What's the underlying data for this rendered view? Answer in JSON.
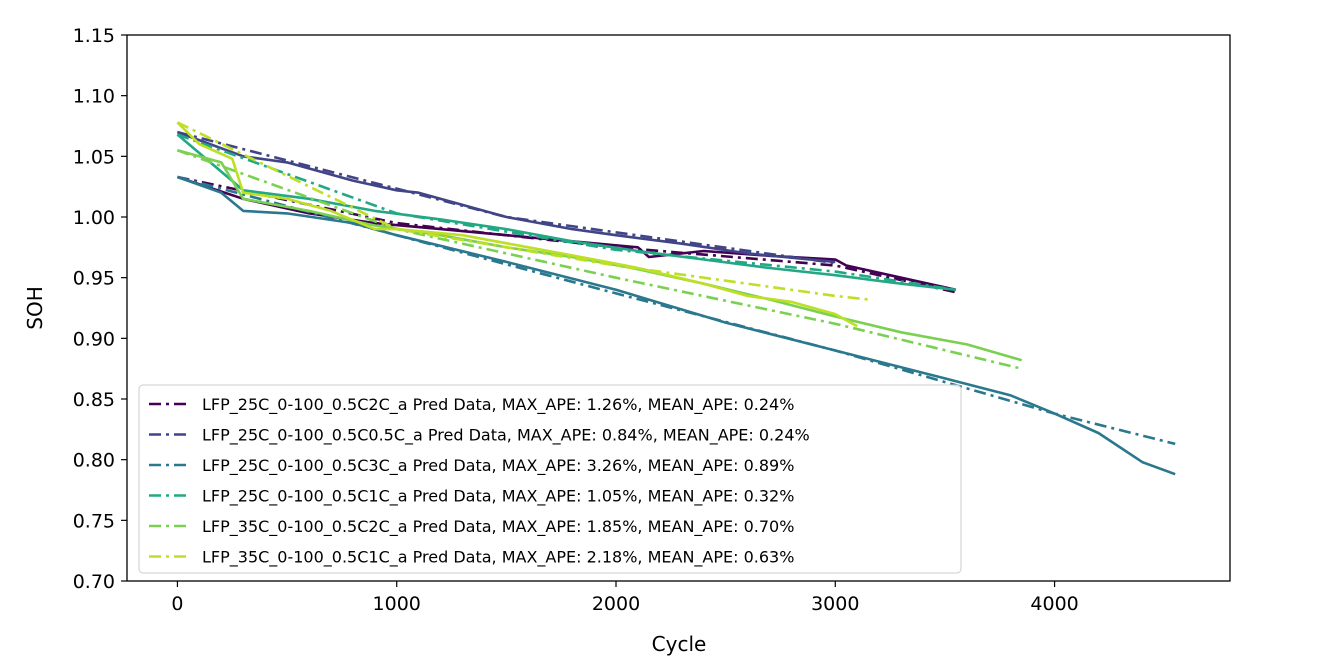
{
  "chart_data": {
    "type": "line",
    "title": "",
    "xlabel": "Cycle",
    "ylabel": "SOH",
    "xlim": [
      -230,
      4800
    ],
    "ylim": [
      0.7,
      1.15
    ],
    "xticks": [
      0,
      1000,
      2000,
      3000,
      4000
    ],
    "xtick_labels": [
      "0",
      "1000",
      "2000",
      "3000",
      "4000"
    ],
    "yticks": [
      0.7,
      0.75,
      0.8,
      0.85,
      0.9,
      0.95,
      1.0,
      1.05,
      1.1,
      1.15
    ],
    "ytick_labels": [
      "0.70",
      "0.75",
      "0.80",
      "0.85",
      "0.90",
      "0.95",
      "1.00",
      "1.05",
      "1.10",
      "1.15"
    ],
    "grid": false,
    "legend_position": "lower-left",
    "series": [
      {
        "name": "LFP_25C_0-100_0.5C2C_a Pred Data, MAX_APE: 1.26%, MEAN_APE: 0.24%",
        "color": "#440154",
        "actual": {
          "x": [
            0,
            300,
            600,
            900,
            1200,
            1500,
            1800,
            2100,
            2150,
            2400,
            2700,
            3000,
            3050,
            3300,
            3550
          ],
          "y": [
            1.033,
            1.015,
            1.003,
            0.995,
            0.99,
            0.985,
            0.98,
            0.975,
            0.967,
            0.972,
            0.968,
            0.965,
            0.96,
            0.95,
            0.94
          ]
        },
        "pred": {
          "x": [
            0,
            1000,
            2000,
            3000,
            3550
          ],
          "y": [
            1.033,
            0.995,
            0.975,
            0.96,
            0.938
          ]
        }
      },
      {
        "name": "LFP_25C_0-100_0.5C0.5C_a Pred Data, MAX_APE: 0.84%, MEAN_APE: 0.24%",
        "color": "#414487",
        "actual": {
          "x": [
            0,
            300,
            500,
            800,
            1000,
            1100,
            1500,
            1800,
            2000,
            2300,
            2600,
            3000
          ],
          "y": [
            1.07,
            1.05,
            1.045,
            1.03,
            1.022,
            1.02,
            1.0,
            0.99,
            0.985,
            0.978,
            0.97,
            0.963
          ]
        },
        "pred": {
          "x": [
            0,
            1500,
            3000
          ],
          "y": [
            1.07,
            1.0,
            0.962
          ]
        }
      },
      {
        "name": "LFP_25C_0-100_0.5C3C_a Pred Data, MAX_APE: 3.26%, MEAN_APE: 0.89%",
        "color": "#2a788e",
        "actual": {
          "x": [
            0,
            200,
            300,
            500,
            800,
            1000,
            1500,
            2000,
            2500,
            3000,
            3500,
            3800,
            4000,
            4200,
            4400,
            4550
          ],
          "y": [
            1.033,
            1.02,
            1.005,
            1.003,
            0.995,
            0.985,
            0.963,
            0.94,
            0.913,
            0.89,
            0.867,
            0.853,
            0.838,
            0.822,
            0.798,
            0.788
          ]
        },
        "pred": {
          "x": [
            0,
            1000,
            2000,
            3000,
            4000,
            4550
          ],
          "y": [
            1.033,
            0.985,
            0.937,
            0.89,
            0.838,
            0.813
          ]
        }
      },
      {
        "name": "LFP_25C_0-100_0.5C1C_a Pred Data, MAX_APE: 1.05%, MEAN_APE: 0.32%",
        "color": "#22a884",
        "actual": {
          "x": [
            0,
            300,
            600,
            900,
            1200,
            1500,
            1800,
            2100,
            2400,
            2700,
            3000,
            3300,
            3550
          ],
          "y": [
            1.068,
            1.022,
            1.015,
            1.005,
            0.998,
            0.99,
            0.98,
            0.972,
            0.965,
            0.958,
            0.952,
            0.945,
            0.94
          ]
        },
        "pred": {
          "x": [
            0,
            1000,
            2000,
            3000,
            3550
          ],
          "y": [
            1.068,
            1.003,
            0.973,
            0.955,
            0.94
          ]
        }
      },
      {
        "name": "LFP_35C_0-100_0.5C2C_a Pred Data, MAX_APE: 1.85%, MEAN_APE: 0.70%",
        "color": "#7ad151",
        "actual": {
          "x": [
            0,
            200,
            300,
            600,
            900,
            1200,
            1500,
            1800,
            2100,
            2400,
            2700,
            3000,
            3300,
            3600,
            3850
          ],
          "y": [
            1.055,
            1.045,
            1.015,
            1.005,
            0.993,
            0.985,
            0.975,
            0.967,
            0.957,
            0.945,
            0.932,
            0.918,
            0.905,
            0.895,
            0.882
          ]
        },
        "pred": {
          "x": [
            0,
            1000,
            2000,
            3000,
            3850
          ],
          "y": [
            1.055,
            0.99,
            0.95,
            0.912,
            0.875
          ]
        }
      },
      {
        "name": "LFP_35C_0-100_0.5C1C_a Pred Data, MAX_APE: 2.18%, MEAN_APE: 0.63%",
        "color": "#bddf26",
        "actual": {
          "x": [
            0,
            100,
            250,
            300,
            500,
            700,
            900,
            1000,
            1300,
            1600,
            1900,
            2100,
            2400,
            2600,
            2800,
            3000,
            3100
          ],
          "y": [
            1.078,
            1.06,
            1.048,
            1.02,
            1.015,
            1.005,
            0.99,
            0.99,
            0.985,
            0.975,
            0.965,
            0.958,
            0.945,
            0.935,
            0.93,
            0.92,
            0.91
          ]
        },
        "pred": {
          "x": [
            0,
            1000,
            2000,
            3000,
            3150
          ],
          "y": [
            1.078,
            0.99,
            0.96,
            0.935,
            0.932
          ]
        }
      }
    ]
  }
}
